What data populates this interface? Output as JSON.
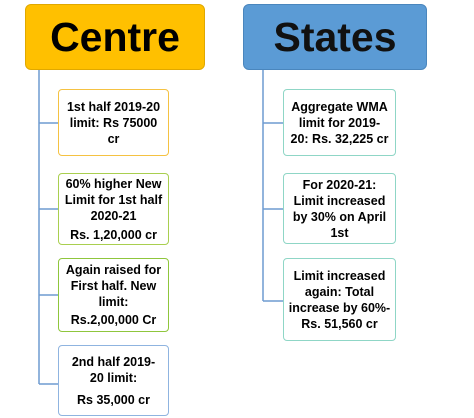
{
  "centre": {
    "title": "Centre",
    "header_color": "#ffc000",
    "boxes": [
      {
        "lines": [
          "1st half 2019-20",
          "limit: Rs 75000",
          "cr"
        ],
        "border_color": "#f5c242"
      },
      {
        "lines": [
          "60% higher New",
          "Limit for 1st half",
          "2020-21",
          "Rs. 1,20,000 cr"
        ],
        "border_color": "#a9cf4f"
      },
      {
        "lines": [
          "Again raised for",
          "First half. New",
          "limit:",
          "Rs.2,00,000 Cr"
        ],
        "border_color": "#8fc63c"
      },
      {
        "lines": [
          "2nd half 2019-",
          "20 limit:",
          "Rs 35,000 cr"
        ],
        "border_color": "#8fb4e0"
      }
    ]
  },
  "states": {
    "title": "States",
    "header_color": "#5b9bd5",
    "boxes": [
      {
        "lines": [
          "Aggregate WMA",
          "limit for 2019-",
          "20: Rs. 32,225 cr"
        ],
        "border_color": "#8fd6c6"
      },
      {
        "lines": [
          "For 2020-21:",
          "Limit increased",
          "by 30% on April",
          "1st"
        ],
        "border_color": "#8fd6c6"
      },
      {
        "lines": [
          "Limit increased",
          "again: Total",
          "increase by 60%-",
          "Rs. 51,560 cr"
        ],
        "border_color": "#8fd6c6"
      }
    ]
  },
  "connector_color": "#6f9bd1"
}
